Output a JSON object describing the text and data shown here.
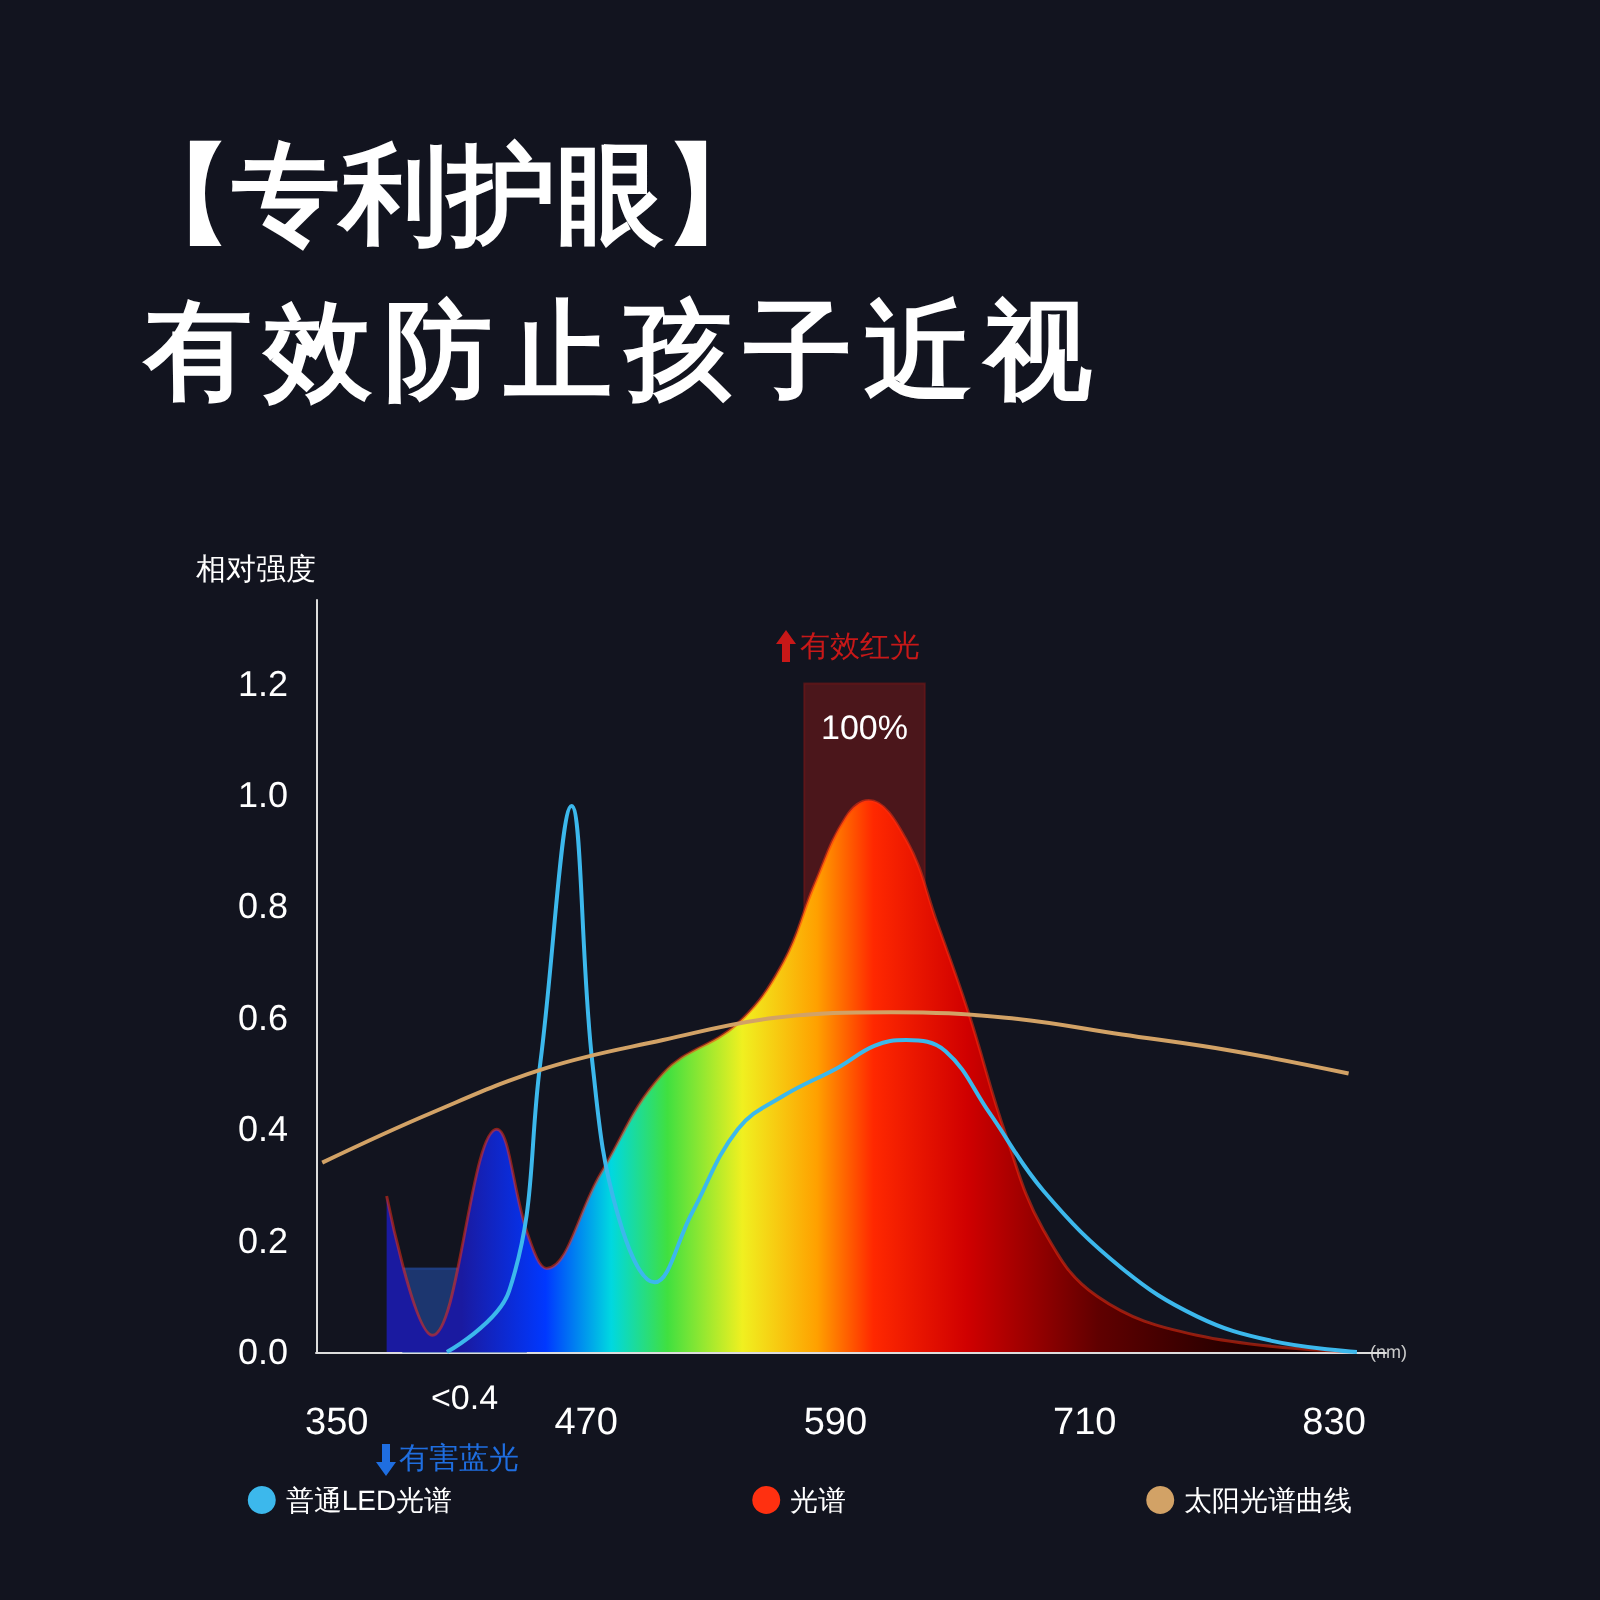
{
  "chart_data": {
    "type": "line",
    "title": "【专利护眼】",
    "subtitle": "有效防止孩子近视",
    "ylabel": "相对强度",
    "xlabel": "(nm)",
    "xlim": [
      340,
      855
    ],
    "xticks": [
      350,
      470,
      590,
      710,
      830
    ],
    "ylim": [
      0,
      1.35
    ],
    "yticks": [
      {
        "value": 0,
        "label": "0.0"
      },
      {
        "value": 0.2,
        "label": "0.2"
      },
      {
        "value": 0.4,
        "label": "0.4"
      },
      {
        "value": 0.6,
        "label": "0.6"
      },
      {
        "value": 0.8,
        "label": "0.8"
      },
      {
        "value": 1,
        "label": "1.0"
      },
      {
        "value": 1.2,
        "label": "1.2"
      }
    ],
    "grid": false,
    "legend": "bottom",
    "marker": "none",
    "line_style": "solid",
    "series": [
      {
        "name": "普通LED光谱",
        "color": "#3cb8ec",
        "x": [
          403,
          433,
          448,
          463,
          473,
          485,
          503,
          521,
          543,
          565,
          591,
          609,
          624,
          643,
          664,
          690,
          728,
          764,
          800,
          841
        ],
        "values": [
          0,
          0.11,
          0.52,
          0.98,
          0.52,
          0.25,
          0.125,
          0.25,
          0.4,
          0.46,
          0.51,
          0.55,
          0.56,
          0.54,
          0.43,
          0.29,
          0.15,
          0.064,
          0.02,
          0
        ]
      },
      {
        "name": "光谱",
        "type": "area",
        "color": "#ff3010",
        "x": [
          374,
          396,
          427,
          442,
          451,
          477,
          507,
          543,
          565,
          580,
          595,
          606,
          624,
          639,
          654,
          672,
          690,
          716,
          764,
          838
        ],
        "values": [
          0.28,
          0.03,
          0.4,
          0.21,
          0.15,
          0.32,
          0.5,
          0.59,
          0.7,
          0.84,
          0.96,
          0.99,
          0.92,
          0.77,
          0.61,
          0.39,
          0.22,
          0.1,
          0.03,
          0
        ]
      },
      {
        "name": "太阳光谱曲线",
        "color": "#d2a266",
        "x": [
          343,
          396,
          451,
          507,
          561,
          617,
          672,
          728,
          782,
          837
        ],
        "values": [
          0.34,
          0.43,
          0.51,
          0.56,
          0.6,
          0.61,
          0.6,
          0.57,
          0.54,
          0.5
        ]
      }
    ],
    "bands": [
      {
        "axis": "x",
        "from": 382,
        "to": 441,
        "label": "<0.4",
        "color": "#2552b0"
      },
      {
        "axis": "x",
        "from": 575,
        "to": 633,
        "label": "100%",
        "color": "#7a1818"
      }
    ],
    "annotations": [
      "有害蓝光",
      "有效红光"
    ]
  }
}
